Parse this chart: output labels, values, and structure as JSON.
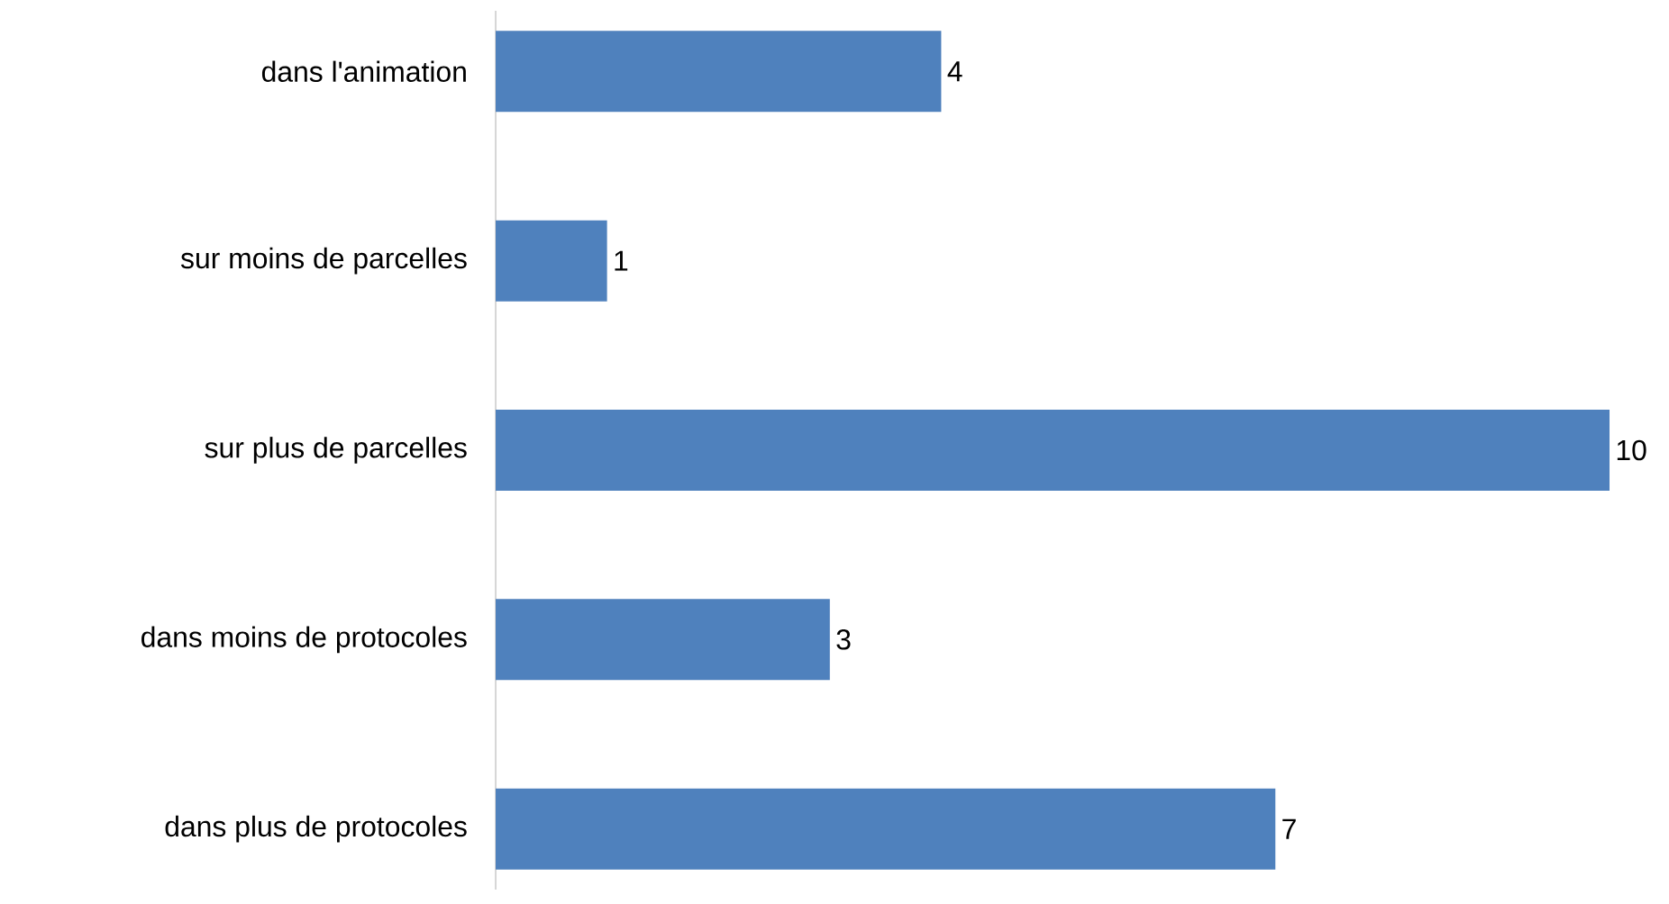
{
  "chart_data": {
    "type": "bar",
    "orientation": "horizontal",
    "categories": [
      "dans l'animation",
      "sur moins de parcelles",
      "sur plus de parcelles",
      "dans moins de protocoles",
      "dans plus de protocoles"
    ],
    "values": [
      4,
      1,
      10,
      3,
      7
    ],
    "value_labels": [
      "4",
      "1",
      "10",
      "3",
      "7"
    ],
    "color": "#4f81bd"
  }
}
